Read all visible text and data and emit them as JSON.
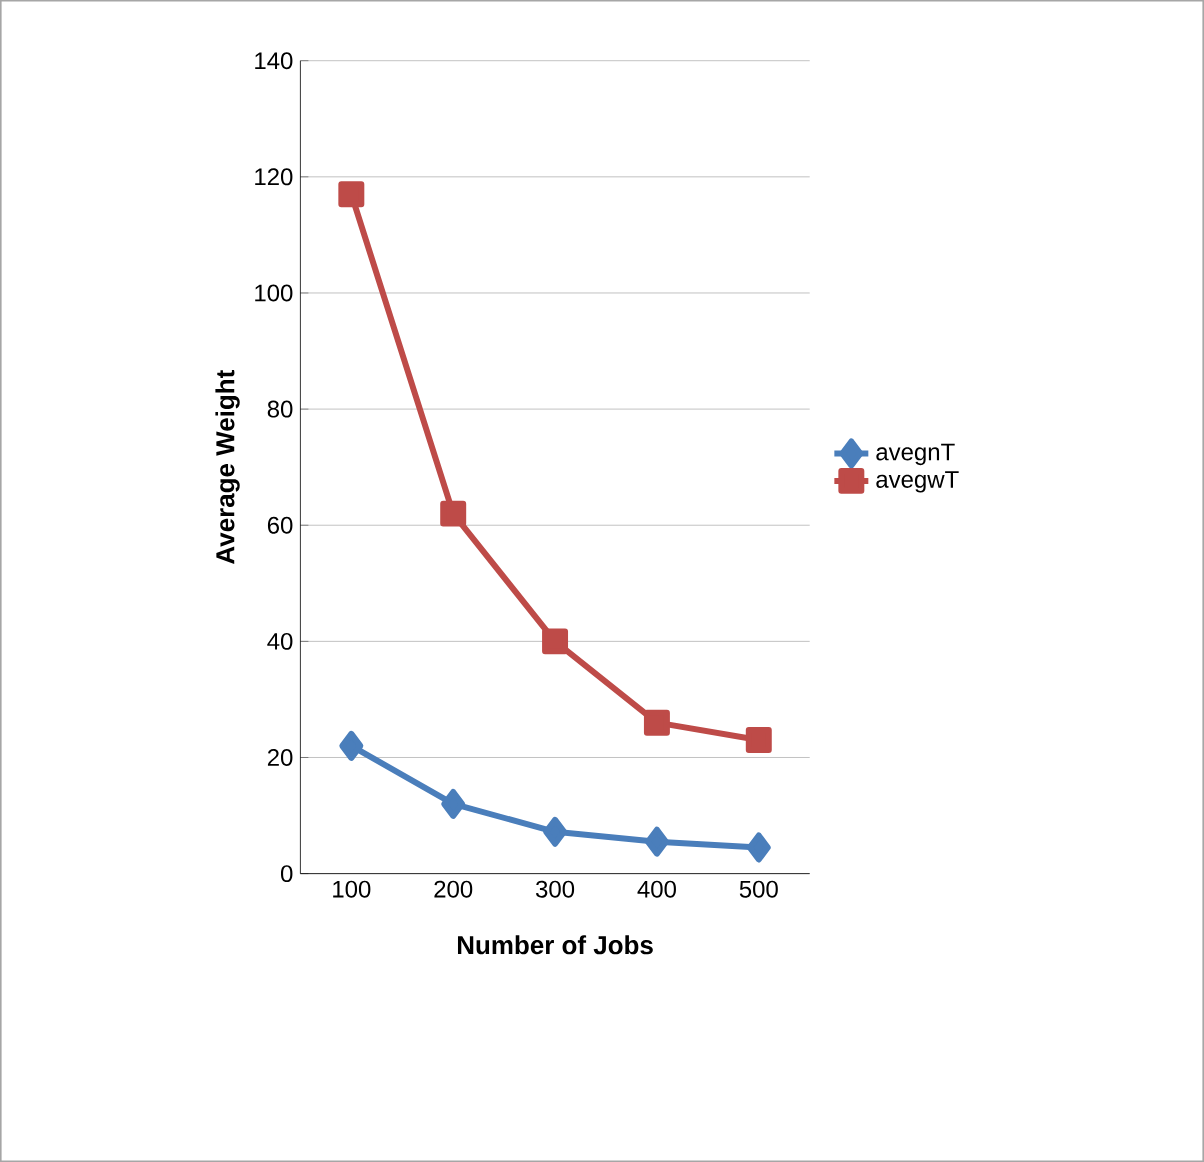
{
  "chart_data": {
    "type": "line",
    "xlabel": "Number of Jobs",
    "ylabel": "Average Weight",
    "categories": [
      "100",
      "200",
      "300",
      "400",
      "500"
    ],
    "series": [
      {
        "name": "avegnT",
        "color": "#4a7ebb",
        "marker": "diamond",
        "values": [
          22,
          12,
          7.2,
          5.5,
          4.5
        ]
      },
      {
        "name": "avegwT",
        "color": "#be4b48",
        "marker": "square",
        "values": [
          117,
          62,
          40,
          26,
          23
        ]
      }
    ],
    "ylim": [
      0,
      140
    ],
    "yticks": [
      0,
      20,
      40,
      60,
      80,
      100,
      120,
      140
    ],
    "grid": "y",
    "legend": "right"
  }
}
